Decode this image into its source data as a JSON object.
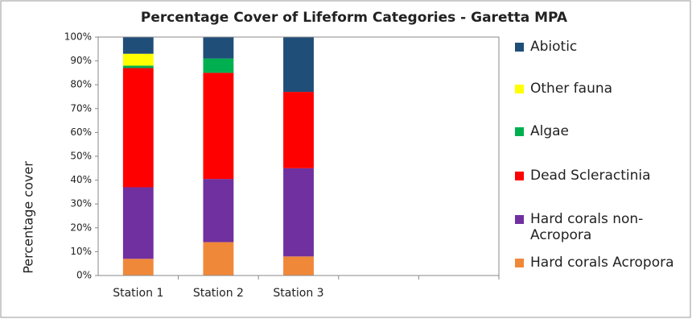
{
  "chart_data": {
    "type": "stacked_bar",
    "title": "Percentage Cover of Lifeform Categories - Garetta MPA",
    "y_label": "Percentage cover",
    "categories": [
      "Station 1",
      "Station 2",
      "Station 3",
      null,
      null
    ],
    "series": [
      {
        "name": "Hard corals Acropora",
        "color": "#f0883a",
        "values": [
          7,
          14,
          8,
          null,
          null
        ]
      },
      {
        "name": "Hard corals non-Acropora",
        "color": "#7030a0",
        "values": [
          30,
          26.5,
          37,
          null,
          null
        ]
      },
      {
        "name": "Dead Scleractinia",
        "color": "#ff0000",
        "values": [
          50,
          44.5,
          32,
          null,
          null
        ]
      },
      {
        "name": "Algae",
        "color": "#00b050",
        "values": [
          1,
          6,
          0,
          null,
          null
        ]
      },
      {
        "name": "Other fauna",
        "color": "#ffff00",
        "values": [
          5,
          0,
          0,
          null,
          null
        ]
      },
      {
        "name": "Abiotic",
        "color": "#1f4e79",
        "values": [
          7,
          9,
          23,
          null,
          null
        ]
      }
    ],
    "ylim": [
      0,
      100
    ],
    "yticks": [
      {
        "value": 0,
        "label": "0%"
      },
      {
        "value": 10,
        "label": "10%"
      },
      {
        "value": 20,
        "label": "20%"
      },
      {
        "value": 30,
        "label": "30%"
      },
      {
        "value": 40,
        "label": "40%"
      },
      {
        "value": 50,
        "label": "50%"
      },
      {
        "value": 60,
        "label": "60%"
      },
      {
        "value": 70,
        "label": "70%"
      },
      {
        "value": 80,
        "label": "80%"
      },
      {
        "value": 90,
        "label": "90%"
      },
      {
        "value": 100,
        "label": "100%"
      }
    ],
    "legend": "right"
  }
}
